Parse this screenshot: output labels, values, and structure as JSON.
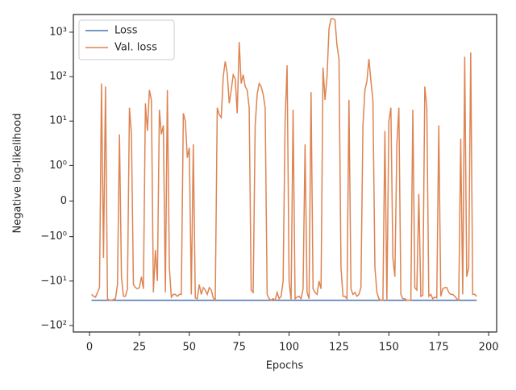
{
  "chart_data": {
    "type": "line",
    "xlabel": "Epochs",
    "ylabel": "Negative log-likelihood",
    "yscale": "symlog",
    "linthresh": 1,
    "legend": "upper left",
    "xlim": [
      -8.1,
      204
    ],
    "xticks": [
      0,
      25,
      50,
      75,
      100,
      125,
      150,
      175,
      200
    ],
    "ylim": [
      -140,
      2500
    ],
    "yticks": [
      {
        "value": 1000,
        "label": "10³"
      },
      {
        "value": 100,
        "label": "10²"
      },
      {
        "value": 10,
        "label": "10¹"
      },
      {
        "value": 1,
        "label": "10⁰"
      },
      0,
      {
        "value": -1,
        "label": "−10⁰"
      },
      {
        "value": -10,
        "label": "−10¹"
      },
      {
        "value": -100,
        "label": "−10²"
      }
    ],
    "x": [
      1,
      2,
      3,
      4,
      5,
      6,
      7,
      8,
      9,
      10,
      11,
      12,
      13,
      14,
      15,
      16,
      17,
      18,
      19,
      20,
      21,
      22,
      23,
      24,
      25,
      26,
      27,
      28,
      29,
      30,
      31,
      32,
      33,
      34,
      35,
      36,
      37,
      38,
      39,
      40,
      41,
      42,
      43,
      44,
      45,
      46,
      47,
      48,
      49,
      50,
      51,
      52,
      53,
      54,
      55,
      56,
      57,
      58,
      59,
      60,
      61,
      62,
      63,
      64,
      65,
      66,
      67,
      68,
      69,
      70,
      71,
      72,
      73,
      74,
      75,
      76,
      77,
      78,
      79,
      80,
      81,
      82,
      83,
      84,
      85,
      86,
      87,
      88,
      89,
      90,
      91,
      92,
      93,
      94,
      95,
      96,
      97,
      98,
      99,
      100,
      101,
      102,
      103,
      104,
      105,
      106,
      107,
      108,
      109,
      110,
      111,
      112,
      113,
      114,
      115,
      116,
      117,
      118,
      119,
      120,
      121,
      122,
      123,
      124,
      125,
      126,
      127,
      128,
      129,
      130,
      131,
      132,
      133,
      134,
      135,
      136,
      137,
      138,
      139,
      140,
      141,
      142,
      143,
      144,
      145,
      146,
      147,
      148,
      149,
      150,
      151,
      152,
      153,
      154,
      155,
      156,
      157,
      158,
      159,
      160,
      161,
      162,
      163,
      164,
      165,
      166,
      167,
      168,
      169,
      170,
      171,
      172,
      173,
      174,
      175,
      176,
      177,
      178,
      179,
      180,
      181,
      182,
      183,
      184,
      185,
      186,
      187,
      188,
      189,
      190,
      191,
      192,
      193,
      194
    ],
    "series": [
      {
        "name": "Loss",
        "color": "#4c72b0",
        "values": [
          -27,
          -27,
          -27,
          -27,
          -27,
          -27,
          -27,
          -27,
          -27,
          -27,
          -27,
          -27,
          -27,
          -27,
          -27,
          -27,
          -27,
          -27,
          -27,
          -27,
          -27,
          -27,
          -27,
          -27,
          -27,
          -27,
          -27,
          -27,
          -27,
          -27,
          -27,
          -27,
          -27,
          -27,
          -27,
          -27,
          -27,
          -27,
          -27,
          -27,
          -27,
          -27,
          -27,
          -27,
          -27,
          -27,
          -27,
          -27,
          -27,
          -27,
          -27,
          -27,
          -27,
          -27,
          -27,
          -27,
          -27,
          -27,
          -27,
          -27,
          -27,
          -27,
          -27,
          -27,
          -27,
          -27,
          -27,
          -27,
          -27,
          -27,
          -27,
          -27,
          -27,
          -27,
          -27,
          -27,
          -27,
          -27,
          -27,
          -27,
          -27,
          -27,
          -27,
          -27,
          -27,
          -27,
          -27,
          -27,
          -27,
          -27,
          -27,
          -27,
          -27,
          -27,
          -27,
          -27,
          -27,
          -27,
          -27,
          -27,
          -27,
          -27,
          -27,
          -27,
          -27,
          -27,
          -27,
          -27,
          -27,
          -27,
          -27,
          -27,
          -27,
          -27,
          -27,
          -27,
          -27,
          -27,
          -27,
          -27,
          -27,
          -27,
          -27,
          -27,
          -27,
          -27,
          -27,
          -27,
          -27,
          -27,
          -27,
          -27,
          -27,
          -27,
          -27,
          -27,
          -27,
          -27,
          -27,
          -27,
          -27,
          -27,
          -27,
          -27,
          -27,
          -27,
          -27,
          -27,
          -27,
          -27,
          -27,
          -27,
          -27,
          -27,
          -27,
          -27,
          -27,
          -27,
          -27,
          -27,
          -27,
          -27,
          -27,
          -27,
          -27,
          -27,
          -27,
          -27,
          -27,
          -27,
          -27,
          -27,
          -27,
          -27,
          -27,
          -27,
          -27,
          -27,
          -27,
          -27,
          -27,
          -27,
          -27,
          -27,
          -27,
          -27,
          -27,
          -27,
          -27,
          -27,
          -27,
          -27,
          -27,
          -27
        ]
      },
      {
        "name": "Val. loss",
        "color": "#dd8452",
        "values": [
          -20,
          -22,
          -23,
          -18,
          -14,
          70,
          -3,
          60,
          -25,
          -27,
          -27,
          -26,
          -25,
          -12,
          5,
          -8,
          -22,
          -22,
          -15,
          20,
          5,
          -12,
          -14,
          -15,
          -14,
          -8,
          -15,
          25,
          6,
          50,
          30,
          -18,
          -2,
          -10,
          18,
          5,
          8,
          -18,
          50,
          -5,
          -23,
          -20,
          -20,
          -22,
          -20,
          -20,
          15,
          10,
          1.5,
          2.5,
          -20,
          3,
          -24,
          -25,
          -12,
          -20,
          -14,
          -16,
          -20,
          -14,
          -16,
          -24,
          -27,
          20,
          14,
          12,
          100,
          220,
          120,
          25,
          50,
          110,
          90,
          15,
          600,
          70,
          110,
          60,
          50,
          20,
          -16,
          -18,
          8,
          40,
          70,
          60,
          40,
          20,
          -20,
          -25,
          -27,
          -25,
          -27,
          -18,
          -25,
          -22,
          -10,
          10,
          180,
          -10,
          -27,
          18,
          -25,
          -23,
          -22,
          -25,
          -15,
          3,
          -18,
          -25,
          45,
          -15,
          -18,
          -20,
          -10,
          -15,
          160,
          30,
          100,
          1200,
          2000,
          2000,
          1900,
          500,
          250,
          -5,
          -22,
          -22,
          -25,
          30,
          -15,
          -20,
          -18,
          -22,
          -20,
          -14,
          8,
          50,
          80,
          250,
          80,
          30,
          -5,
          -18,
          -25,
          -27,
          -27,
          6,
          -27,
          10,
          20,
          -3,
          -8,
          3,
          20,
          -20,
          -25,
          -25,
          -27,
          -27,
          -27,
          18,
          -14,
          -16,
          0.2,
          -22,
          -21,
          60,
          20,
          -22,
          -20,
          -25,
          -23,
          -24,
          8,
          -22,
          -15,
          -14,
          -14,
          -18,
          -20,
          -20,
          -22,
          -25,
          -27,
          4,
          -20,
          280,
          -8,
          -5,
          350,
          -20,
          -20,
          -22
        ]
      }
    ]
  }
}
